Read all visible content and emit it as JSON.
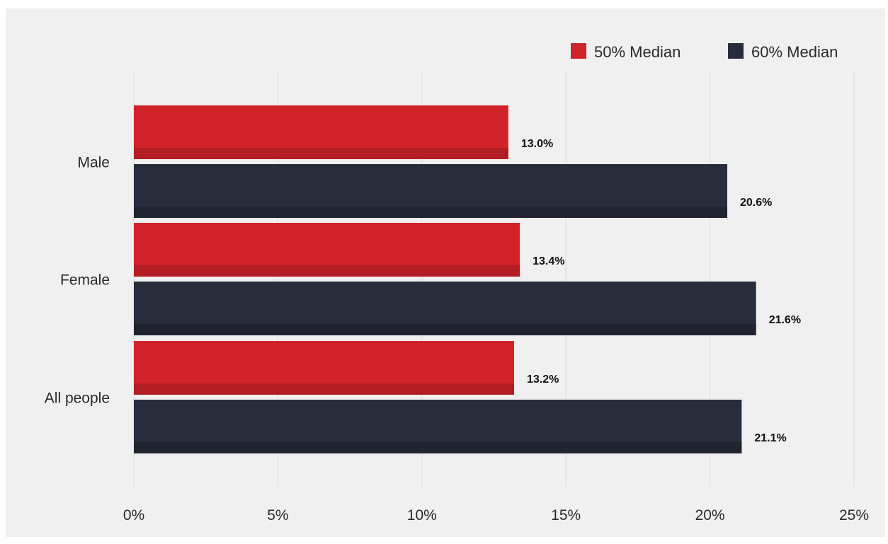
{
  "chart_data": {
    "type": "bar",
    "orientation": "horizontal",
    "categories": [
      "Male",
      "Female",
      "All people"
    ],
    "series": [
      {
        "name": "50% Median",
        "values": [
          13.0,
          13.4,
          13.2
        ],
        "labels": [
          "13.0%",
          "13.4%",
          "13.2%"
        ],
        "color": "#d12229",
        "shade": "#b31d24"
      },
      {
        "name": "60% Median",
        "values": [
          20.6,
          21.6,
          21.1
        ],
        "labels": [
          "20.6%",
          "21.6%",
          "21.1%"
        ],
        "color": "#272d3b",
        "shade": "#1f2430"
      }
    ],
    "xlim": [
      0,
      25
    ],
    "xticks": [
      0,
      5,
      10,
      15,
      20,
      25
    ],
    "xtick_labels": [
      "0%",
      "5%",
      "10%",
      "15%",
      "20%",
      "25%"
    ],
    "grid": true,
    "legend_position": "top-right",
    "title": "",
    "xlabel": "",
    "ylabel": ""
  },
  "colors": {
    "background": "#f0f0f0",
    "gridline": "#dcdcdc"
  }
}
